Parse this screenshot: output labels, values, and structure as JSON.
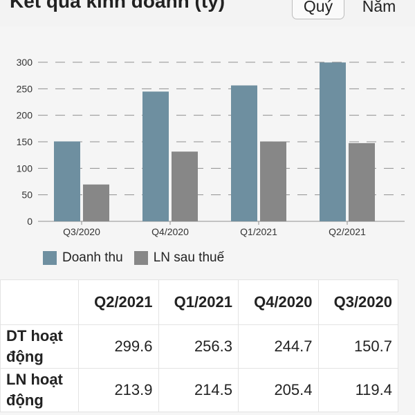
{
  "header": {
    "title": "Kết quả kinh doanh (tỷ)",
    "period_buttons": [
      {
        "label": "Quý",
        "selected": true
      },
      {
        "label": "Năm",
        "selected": false
      }
    ]
  },
  "chart_data": {
    "type": "bar",
    "title": "",
    "xlabel": "",
    "ylabel": "",
    "categories": [
      "Q3/2020",
      "Q4/2020",
      "Q1/2021",
      "Q2/2021"
    ],
    "series": [
      {
        "name": "Doanh thu",
        "values": [
          150.7,
          244.7,
          256.3,
          299.6
        ],
        "color": "#6e8fa0"
      },
      {
        "name": "LN sau thuế",
        "values": [
          69.5,
          131.5,
          150.6,
          147.5
        ],
        "color": "#878787"
      }
    ],
    "ylim": [
      0,
      300
    ],
    "yticks": [
      0,
      50,
      100,
      150,
      200,
      250,
      300
    ],
    "grid": true,
    "legend_position": "bottom-left"
  },
  "table": {
    "headers": [
      "",
      "Q2/2021",
      "Q1/2021",
      "Q4/2020",
      "Q3/2020"
    ],
    "rows": [
      {
        "label": "DT hoạt động",
        "values": [
          "299.6",
          "256.3",
          "244.7",
          "150.7"
        ]
      },
      {
        "label": "LN hoạt động",
        "values": [
          "213.9",
          "214.5",
          "205.4",
          "119.4"
        ]
      }
    ]
  }
}
